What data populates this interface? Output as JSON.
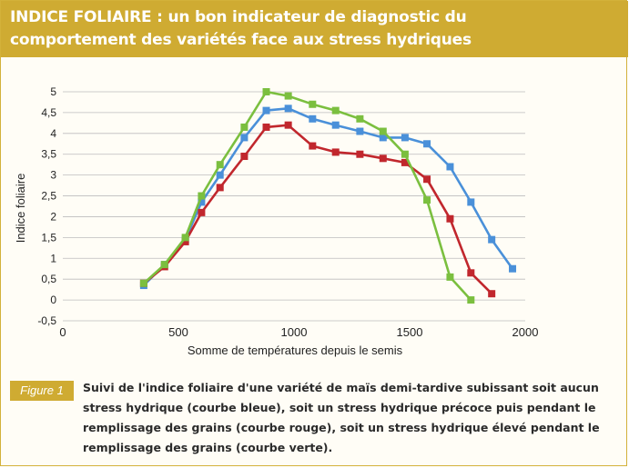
{
  "header": {
    "title_line1": "INDICE FOLIAIRE : un bon indicateur de diagnostic du",
    "title_line2": "comportement des variétés face aux stress hydriques"
  },
  "caption": {
    "label": "Figure 1",
    "text": "Suivi de l'indice foliaire d'une variété de maïs demi-tardive subissant soit aucun stress hydrique (courbe bleue), soit un stress hydrique précoce puis pendant le remplissage des grains (courbe rouge), soit un stress hydrique élevé pendant le remplissage des grains (courbe verte)."
  },
  "chart_data": {
    "type": "line",
    "xlabel": "Somme de températures depuis le semis",
    "ylabel": "Indice foliaire",
    "xlim": [
      0,
      2000
    ],
    "ylim": [
      -0.5,
      5
    ],
    "xticks": [
      0,
      500,
      1000,
      1500,
      2000
    ],
    "xtick_labels": [
      "0",
      "500",
      "1000",
      "1500",
      "2000"
    ],
    "yticks": [
      -0.5,
      0,
      0.5,
      1,
      1.5,
      2,
      2.5,
      3,
      3.5,
      4,
      4.5,
      5
    ],
    "ytick_labels": [
      "-0,5",
      "0",
      "0,5",
      "1",
      "1,5",
      "2",
      "2,5",
      "3",
      "3,5",
      "4",
      "4,5",
      "5"
    ],
    "grid": "horizontal",
    "legend": "none",
    "series": [
      {
        "color": "#4a90d9",
        "x": [
          350,
          440,
          530,
          600,
          680,
          785,
          880,
          975,
          1080,
          1180,
          1285,
          1385,
          1480,
          1575,
          1675,
          1765,
          1855,
          1945
        ],
        "y": [
          0.35,
          0.85,
          1.45,
          2.35,
          3.0,
          3.9,
          4.55,
          4.6,
          4.35,
          4.2,
          4.05,
          3.9,
          3.9,
          3.75,
          3.2,
          2.35,
          1.45,
          0.75
        ]
      },
      {
        "color": "#c1272d",
        "x": [
          350,
          440,
          530,
          600,
          680,
          785,
          880,
          975,
          1080,
          1180,
          1285,
          1385,
          1480,
          1575,
          1675,
          1765,
          1855
        ],
        "y": [
          0.4,
          0.8,
          1.4,
          2.1,
          2.7,
          3.45,
          4.15,
          4.2,
          3.7,
          3.55,
          3.5,
          3.4,
          3.3,
          2.9,
          1.95,
          0.65,
          0.15
        ]
      },
      {
        "color": "#7bbf3f",
        "x": [
          350,
          440,
          530,
          600,
          680,
          785,
          880,
          975,
          1080,
          1180,
          1285,
          1385,
          1480,
          1575,
          1675,
          1765
        ],
        "y": [
          0.4,
          0.85,
          1.5,
          2.5,
          3.25,
          4.15,
          5.0,
          4.9,
          4.7,
          4.55,
          4.35,
          4.05,
          3.5,
          2.4,
          0.55,
          0.0
        ]
      }
    ]
  }
}
